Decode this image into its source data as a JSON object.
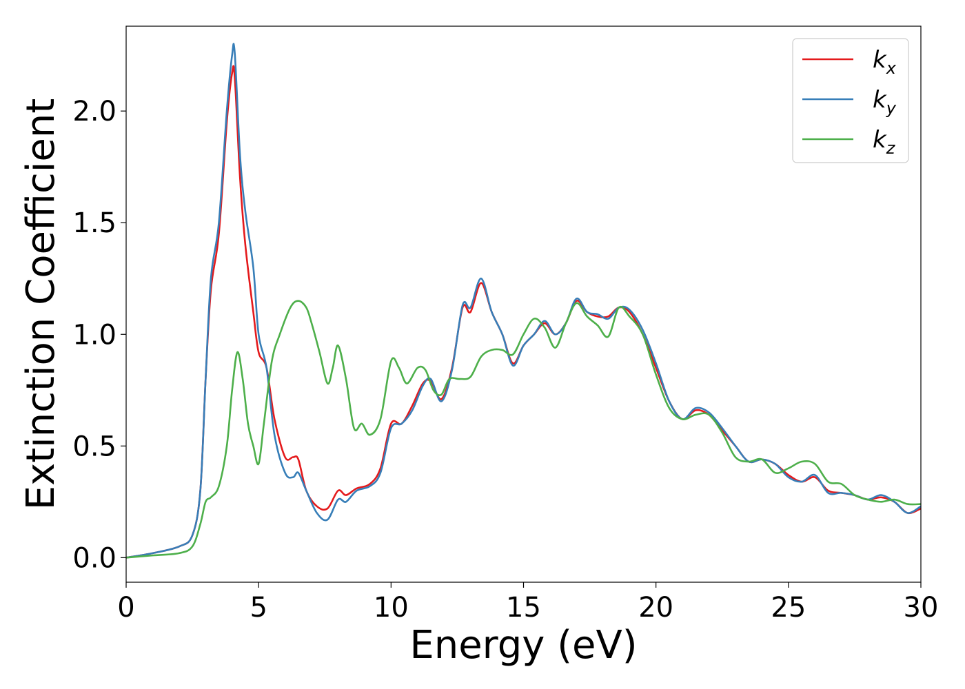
{
  "chart_data": {
    "type": "line",
    "xlabel": "Energy (eV)",
    "ylabel": "Extinction Coefficient",
    "xlim": [
      0,
      30
    ],
    "ylim": [
      -0.11,
      2.38
    ],
    "xticks": [
      0,
      5,
      10,
      15,
      20,
      25,
      30
    ],
    "yticks": [
      0.0,
      0.5,
      1.0,
      1.5,
      2.0
    ],
    "xtick_labels": [
      "0",
      "5",
      "10",
      "15",
      "20",
      "25",
      "30"
    ],
    "ytick_labels": [
      "0.0",
      "0.5",
      "1.0",
      "1.5",
      "2.0"
    ],
    "grid": false,
    "legend_position": "top-right",
    "series": [
      {
        "name": "kx",
        "label_base": "k",
        "label_sub": "x",
        "color": "#e41a1c",
        "x": [
          0,
          1,
          2,
          2.5,
          2.8,
          3.0,
          3.2,
          3.5,
          3.8,
          4.0,
          4.1,
          4.3,
          4.5,
          4.8,
          5.0,
          5.3,
          5.6,
          6.0,
          6.3,
          6.5,
          6.8,
          7.2,
          7.6,
          8.0,
          8.3,
          8.7,
          9.2,
          9.6,
          10.0,
          10.4,
          10.8,
          11.2,
          11.5,
          11.9,
          12.3,
          12.7,
          13.0,
          13.4,
          13.8,
          14.2,
          14.6,
          15.0,
          15.4,
          15.8,
          16.2,
          16.6,
          17.0,
          17.4,
          17.8,
          18.2,
          18.6,
          19.0,
          19.5,
          20.0,
          20.5,
          21.0,
          21.5,
          22.0,
          22.5,
          23.0,
          23.5,
          24.0,
          24.5,
          25.0,
          25.5,
          26.0,
          26.5,
          27.0,
          27.5,
          28.0,
          28.5,
          29.0,
          29.5,
          30.0
        ],
        "y": [
          0.0,
          0.02,
          0.05,
          0.1,
          0.3,
          0.8,
          1.2,
          1.45,
          1.95,
          2.17,
          2.15,
          1.7,
          1.4,
          1.1,
          0.92,
          0.85,
          0.62,
          0.45,
          0.45,
          0.44,
          0.3,
          0.23,
          0.22,
          0.3,
          0.28,
          0.31,
          0.33,
          0.4,
          0.6,
          0.6,
          0.68,
          0.78,
          0.79,
          0.71,
          0.85,
          1.12,
          1.1,
          1.23,
          1.1,
          1.0,
          0.87,
          0.95,
          1.0,
          1.05,
          1.0,
          1.05,
          1.15,
          1.1,
          1.08,
          1.08,
          1.12,
          1.1,
          1.0,
          0.85,
          0.7,
          0.62,
          0.66,
          0.64,
          0.57,
          0.5,
          0.43,
          0.44,
          0.42,
          0.37,
          0.34,
          0.36,
          0.3,
          0.29,
          0.28,
          0.26,
          0.27,
          0.25,
          0.2,
          0.22
        ]
      },
      {
        "name": "ky",
        "label_base": "k",
        "label_sub": "y",
        "color": "#377eb8",
        "x": [
          0,
          1,
          2,
          2.5,
          2.8,
          3.0,
          3.2,
          3.5,
          3.8,
          4.0,
          4.1,
          4.3,
          4.5,
          4.8,
          5.0,
          5.3,
          5.6,
          6.0,
          6.3,
          6.5,
          6.8,
          7.2,
          7.6,
          8.0,
          8.3,
          8.7,
          9.2,
          9.6,
          10.0,
          10.4,
          10.8,
          11.2,
          11.5,
          11.9,
          12.3,
          12.7,
          13.0,
          13.4,
          13.8,
          14.2,
          14.6,
          15.0,
          15.4,
          15.8,
          16.2,
          16.6,
          17.0,
          17.4,
          17.8,
          18.2,
          18.6,
          19.0,
          19.5,
          20.0,
          20.5,
          21.0,
          21.5,
          22.0,
          22.5,
          23.0,
          23.5,
          24.0,
          24.5,
          25.0,
          25.5,
          26.0,
          26.5,
          27.0,
          27.5,
          28.0,
          28.5,
          29.0,
          29.5,
          30.0
        ],
        "y": [
          0.0,
          0.02,
          0.05,
          0.1,
          0.3,
          0.8,
          1.25,
          1.5,
          2.0,
          2.25,
          2.26,
          1.8,
          1.55,
          1.3,
          1.0,
          0.85,
          0.55,
          0.38,
          0.36,
          0.38,
          0.3,
          0.2,
          0.17,
          0.26,
          0.25,
          0.3,
          0.32,
          0.38,
          0.58,
          0.6,
          0.66,
          0.77,
          0.8,
          0.7,
          0.84,
          1.13,
          1.12,
          1.25,
          1.1,
          1.0,
          0.86,
          0.95,
          1.0,
          1.06,
          1.0,
          1.05,
          1.16,
          1.1,
          1.09,
          1.07,
          1.12,
          1.11,
          1.02,
          0.87,
          0.7,
          0.62,
          0.67,
          0.65,
          0.58,
          0.5,
          0.43,
          0.44,
          0.42,
          0.36,
          0.34,
          0.37,
          0.29,
          0.29,
          0.28,
          0.26,
          0.28,
          0.25,
          0.2,
          0.23
        ]
      },
      {
        "name": "kz",
        "label_base": "k",
        "label_sub": "z",
        "color": "#4daf4a",
        "x": [
          0,
          1,
          2,
          2.5,
          2.8,
          3.0,
          3.2,
          3.5,
          3.8,
          4.0,
          4.2,
          4.4,
          4.6,
          4.8,
          5.0,
          5.2,
          5.5,
          5.8,
          6.2,
          6.5,
          6.8,
          7.0,
          7.3,
          7.6,
          7.8,
          8.0,
          8.3,
          8.6,
          8.9,
          9.2,
          9.6,
          10.0,
          10.3,
          10.6,
          11.0,
          11.3,
          11.6,
          11.9,
          12.2,
          12.6,
          13.0,
          13.4,
          13.8,
          14.2,
          14.6,
          15.0,
          15.4,
          15.8,
          16.2,
          16.6,
          17.0,
          17.4,
          17.8,
          18.2,
          18.6,
          19.0,
          19.5,
          20.0,
          20.5,
          21.0,
          21.5,
          22.0,
          22.5,
          23.0,
          23.5,
          24.0,
          24.5,
          25.0,
          25.5,
          26.0,
          26.5,
          27.0,
          27.5,
          28.0,
          28.5,
          29.0,
          29.5,
          30.0
        ],
        "y": [
          0.0,
          0.01,
          0.02,
          0.05,
          0.15,
          0.25,
          0.27,
          0.32,
          0.5,
          0.75,
          0.92,
          0.8,
          0.6,
          0.5,
          0.42,
          0.6,
          0.88,
          1.0,
          1.12,
          1.15,
          1.12,
          1.05,
          0.92,
          0.78,
          0.85,
          0.95,
          0.8,
          0.58,
          0.6,
          0.55,
          0.62,
          0.88,
          0.85,
          0.78,
          0.85,
          0.84,
          0.75,
          0.73,
          0.8,
          0.8,
          0.81,
          0.9,
          0.93,
          0.93,
          0.91,
          1.0,
          1.07,
          1.03,
          0.94,
          1.05,
          1.14,
          1.08,
          1.04,
          0.99,
          1.12,
          1.08,
          1.0,
          0.82,
          0.67,
          0.62,
          0.64,
          0.64,
          0.56,
          0.45,
          0.43,
          0.44,
          0.38,
          0.4,
          0.43,
          0.42,
          0.34,
          0.33,
          0.28,
          0.26,
          0.25,
          0.26,
          0.24,
          0.24
        ]
      }
    ]
  }
}
